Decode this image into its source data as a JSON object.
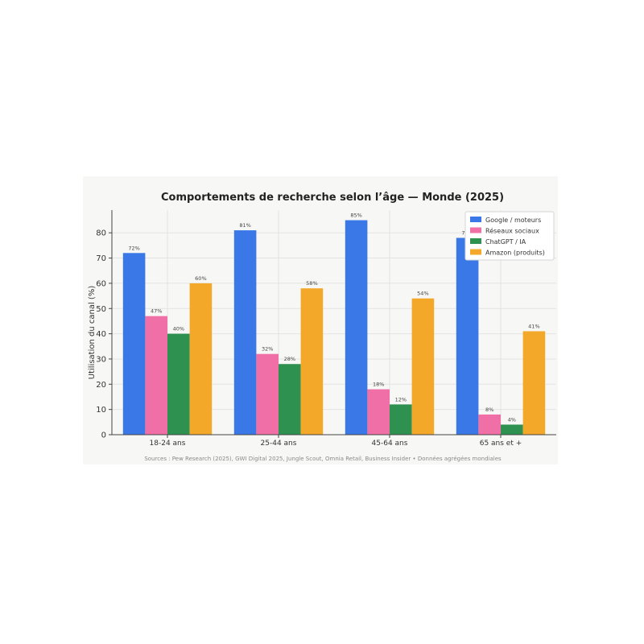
{
  "chart_data": {
    "type": "bar",
    "title": "Comportements de recherche selon l’âge — Monde (2025)",
    "xlabel": "",
    "ylabel": "Utilisation du canal (%)",
    "ylim": [
      0,
      89
    ],
    "yticks": [
      0,
      10,
      20,
      30,
      40,
      50,
      60,
      70,
      80
    ],
    "grid": true,
    "legend_position": "top-right",
    "categories": [
      "18-24 ans",
      "25-44 ans",
      "45-64 ans",
      "65 ans et +"
    ],
    "series": [
      {
        "name": "Google / moteurs",
        "color": "#3b78e7",
        "values": [
          72,
          81,
          85,
          78
        ],
        "labels": [
          "72%",
          "81%",
          "85%",
          "78%"
        ]
      },
      {
        "name": "Réseaux sociaux",
        "color": "#ef6fa6",
        "values": [
          47,
          32,
          18,
          8
        ],
        "labels": [
          "47%",
          "32%",
          "18%",
          "8%"
        ]
      },
      {
        "name": "ChatGPT / IA",
        "color": "#2e9150",
        "values": [
          40,
          28,
          12,
          4
        ],
        "labels": [
          "40%",
          "28%",
          "12%",
          "4%"
        ]
      },
      {
        "name": "Amazon (produits)",
        "color": "#f3a82a",
        "values": [
          60,
          58,
          54,
          41
        ],
        "labels": [
          "60%",
          "58%",
          "54%",
          "41%"
        ]
      }
    ],
    "source": "Sources : Pew Research (2025), GWI Digital 2025, Jungle Scout, Omnia Retail, Business Insider • Données agrégées mondiales"
  }
}
